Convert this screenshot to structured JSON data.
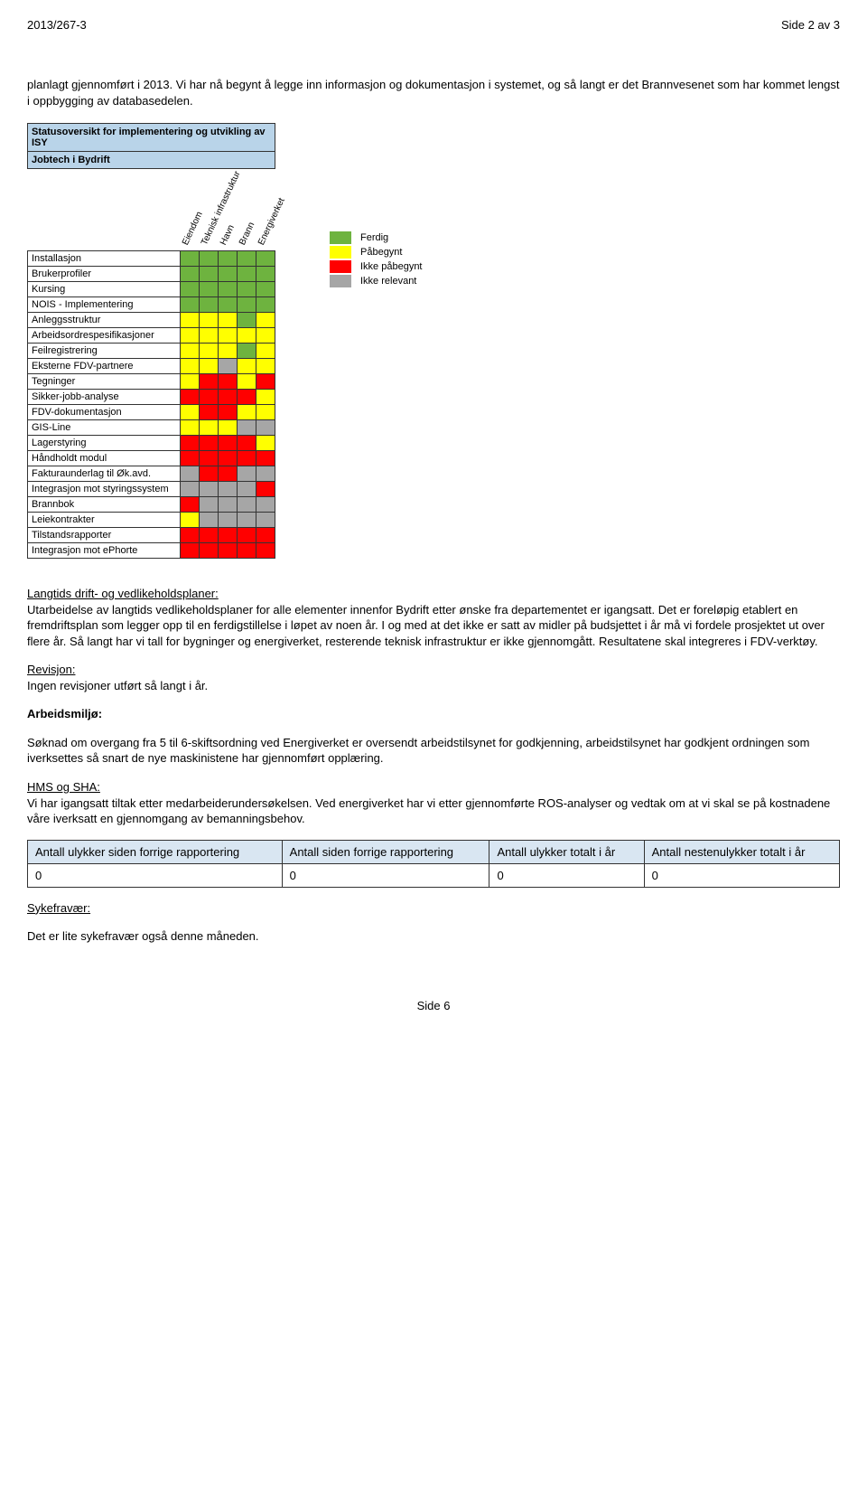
{
  "header": {
    "left": "2013/267-3",
    "right": "Side 2 av 3"
  },
  "intro": "planlagt gjennomført i 2013. Vi har nå begynt å legge inn informasjon og dokumentasjon i systemet, og så langt er det Brannvesenet som har kommet lengst i oppbygging av databasedelen.",
  "status_chart": {
    "title_l1": "Statusoversikt for implementering og utvikling av ISY",
    "title_l2": "Jobtech i Bydrift",
    "columns": [
      "Eiendom",
      "Teknisk infrastruktur",
      "Havn",
      "Brann",
      "Energiverket"
    ],
    "rows": [
      {
        "label": "Installasjon",
        "cells": [
          "green",
          "green",
          "green",
          "green",
          "green"
        ]
      },
      {
        "label": "Brukerprofiler",
        "cells": [
          "green",
          "green",
          "green",
          "green",
          "green"
        ]
      },
      {
        "label": "Kursing",
        "cells": [
          "green",
          "green",
          "green",
          "green",
          "green"
        ]
      },
      {
        "label": "NOIS - Implementering",
        "cells": [
          "green",
          "green",
          "green",
          "green",
          "green"
        ]
      },
      {
        "label": "Anleggsstruktur",
        "cells": [
          "yellow",
          "yellow",
          "yellow",
          "green",
          "yellow"
        ]
      },
      {
        "label": "Arbeidsordrespesifikasjoner",
        "cells": [
          "yellow",
          "yellow",
          "yellow",
          "yellow",
          "yellow"
        ]
      },
      {
        "label": "Feilregistrering",
        "cells": [
          "yellow",
          "yellow",
          "yellow",
          "green",
          "yellow"
        ]
      },
      {
        "label": "Eksterne FDV-partnere",
        "cells": [
          "yellow",
          "yellow",
          "gray",
          "yellow",
          "yellow"
        ]
      },
      {
        "label": "Tegninger",
        "cells": [
          "yellow",
          "red",
          "red",
          "yellow",
          "red"
        ]
      },
      {
        "label": "Sikker-jobb-analyse",
        "cells": [
          "red",
          "red",
          "red",
          "red",
          "yellow"
        ]
      },
      {
        "label": "FDV-dokumentasjon",
        "cells": [
          "yellow",
          "red",
          "red",
          "yellow",
          "yellow"
        ]
      },
      {
        "label": "GIS-Line",
        "cells": [
          "yellow",
          "yellow",
          "yellow",
          "gray",
          "gray"
        ]
      },
      {
        "label": "Lagerstyring",
        "cells": [
          "red",
          "red",
          "red",
          "red",
          "yellow"
        ]
      },
      {
        "label": "Håndholdt modul",
        "cells": [
          "red",
          "red",
          "red",
          "red",
          "red"
        ]
      },
      {
        "label": "Fakturaunderlag til Øk.avd.",
        "cells": [
          "gray",
          "red",
          "red",
          "gray",
          "gray"
        ]
      },
      {
        "label": "Integrasjon mot styringssystem",
        "cells": [
          "gray",
          "gray",
          "gray",
          "gray",
          "red"
        ]
      },
      {
        "label": "Brannbok",
        "cells": [
          "red",
          "gray",
          "gray",
          "gray",
          "gray"
        ]
      },
      {
        "label": "Leiekontrakter",
        "cells": [
          "yellow",
          "gray",
          "gray",
          "gray",
          "gray"
        ]
      },
      {
        "label": "Tilstandsrapporter",
        "cells": [
          "red",
          "red",
          "red",
          "red",
          "red"
        ]
      },
      {
        "label": "Integrasjon mot ePhorte",
        "cells": [
          "red",
          "red",
          "red",
          "red",
          "red"
        ]
      }
    ],
    "legend": [
      {
        "color": "green",
        "label": "Ferdig"
      },
      {
        "color": "yellow",
        "label": "Påbegynt"
      },
      {
        "color": "red",
        "label": "Ikke påbegynt"
      },
      {
        "color": "gray",
        "label": "Ikke relevant"
      }
    ],
    "palette": {
      "green": "#6eb33f",
      "yellow": "#ffff00",
      "red": "#ff0000",
      "gray": "#a6a6a6",
      "header_bg": "#b9d4e9"
    }
  },
  "sections": {
    "langtids": {
      "heading": "Langtids drift- og vedlikeholdsplaner:",
      "body": "Utarbeidelse av langtids vedlikeholdsplaner for alle elementer innenfor Bydrift etter ønske fra departementet er igangsatt. Det er foreløpig etablert en fremdriftsplan som legger opp til en ferdigstillelse i løpet av noen år. I og med at det ikke er satt av midler på budsjettet i år må vi fordele prosjektet ut over flere år. Så langt har vi tall for bygninger og energiverket, resterende teknisk infrastruktur er ikke gjennomgått. Resultatene skal integreres i FDV-verktøy."
    },
    "revisjon": {
      "heading": "Revisjon:",
      "body": "Ingen revisjoner utført så langt i år."
    },
    "arbeidsmiljo": {
      "heading": "Arbeidsmiljø:",
      "body": "Søknad om overgang fra 5 til 6-skiftsordning ved Energiverket er oversendt arbeidstilsynet for godkjenning, arbeidstilsynet har godkjent ordningen som iverksettes så snart de nye maskinistene har gjennomført opplæring."
    },
    "hms": {
      "heading": "HMS og SHA:",
      "body": "Vi har igangsatt tiltak etter medarbeiderundersøkelsen. Ved energiverket har vi etter gjennomførte ROS-analyser og vedtak om at vi skal se på kostnadene våre iverksatt en gjennomgang av bemanningsbehov."
    },
    "sykefravaer": {
      "heading": "Sykefravær:",
      "body": "Det er lite sykefravær også denne måneden."
    }
  },
  "incident_table": {
    "headers": [
      "Antall ulykker siden forrige rapportering",
      "Antall siden forrige rapportering",
      "Antall ulykker totalt i år",
      "Antall nestenulykker totalt i år"
    ],
    "values": [
      "0",
      "0",
      "0",
      "0"
    ]
  },
  "footer": "Side 6"
}
